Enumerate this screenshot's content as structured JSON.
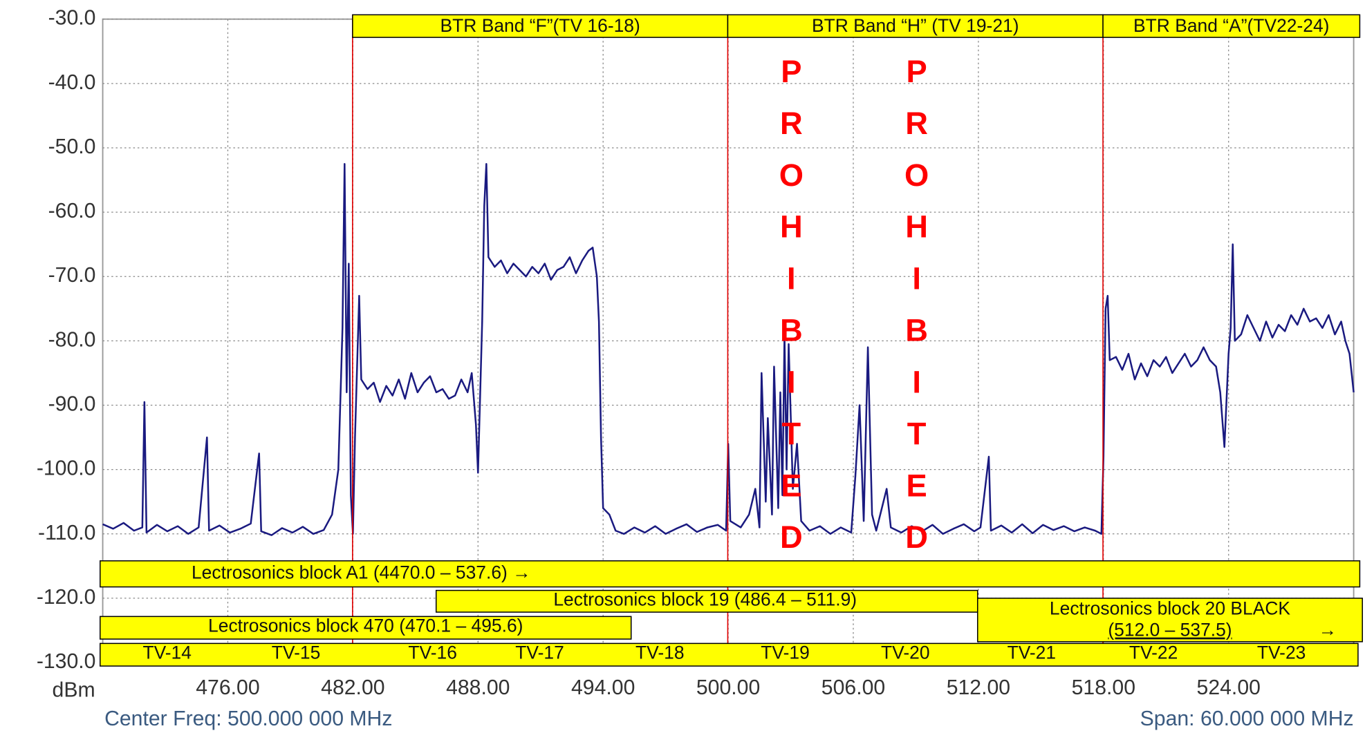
{
  "chart_data": {
    "type": "line",
    "color": "#1a1a80",
    "grid": true,
    "ylabel": "dBm",
    "footer_left": "Center Freq: 500.000 000 MHz",
    "footer_right": "Span: 60.000 000 MHz",
    "xlim": [
      470,
      530
    ],
    "xticks": [
      {
        "value": 476,
        "label": "476.00"
      },
      {
        "value": 482,
        "label": "482.00"
      },
      {
        "value": 488,
        "label": "488.00"
      },
      {
        "value": 494,
        "label": "494.00"
      },
      {
        "value": 500,
        "label": "500.00"
      },
      {
        "value": 506,
        "label": "506.00"
      },
      {
        "value": 512,
        "label": "512.00"
      },
      {
        "value": 518,
        "label": "518.00"
      },
      {
        "value": 524,
        "label": "524.00"
      }
    ],
    "ylim": [
      -130,
      -30
    ],
    "yticks": [
      {
        "value": -30,
        "label": "-30.0"
      },
      {
        "value": -40,
        "label": "-40.0"
      },
      {
        "value": -50,
        "label": "-50.0"
      },
      {
        "value": -60,
        "label": "-60.0"
      },
      {
        "value": -70,
        "label": "-70.0"
      },
      {
        "value": -80,
        "label": "-80.0"
      },
      {
        "value": -90,
        "label": "-90.0"
      },
      {
        "value": -100,
        "label": "-100.0"
      },
      {
        "value": -110,
        "label": "-110.0"
      },
      {
        "value": -120,
        "label": "-120.0"
      },
      {
        "value": -130,
        "label": "-130.0"
      }
    ],
    "bands": [
      "BTR Band “F”(TV 16-18)",
      "BTR Band “H” (TV 19-21)",
      "BTR Band “A”(TV22-24)"
    ],
    "prohibited": [
      "PROHIBITED",
      "PROHIBITED"
    ],
    "blocks": [
      "Lectrosonics block A1 (4470.0 – 537.6) →",
      "Lectrosonics block 19 (486.4 – 511.9)",
      "Lectrosonics block 470 (470.1 – 495.6)",
      "Lectrosonics block 20 BLACK",
      "(512.0 – 537.5)",
      "→"
    ],
    "channels": [
      "TV-14",
      "TV-15",
      "TV-16",
      "TV-17",
      "TV-18",
      "TV-19",
      "TV-20",
      "TV-21",
      "TV-22",
      "TV-23"
    ],
    "x": [
      470.0,
      470.5,
      471.0,
      471.5,
      471.9,
      472.0,
      472.1,
      472.6,
      473.1,
      473.6,
      474.1,
      474.6,
      475.0,
      475.1,
      475.6,
      476.1,
      476.6,
      477.1,
      477.5,
      477.6,
      478.1,
      478.6,
      479.1,
      479.6,
      480.1,
      480.6,
      481.0,
      481.3,
      481.5,
      481.6,
      481.7,
      481.8,
      481.9,
      482.0,
      482.1,
      482.3,
      482.4,
      482.7,
      483.0,
      483.3,
      483.6,
      483.9,
      484.2,
      484.5,
      484.8,
      485.1,
      485.4,
      485.7,
      486.0,
      486.3,
      486.6,
      486.9,
      487.2,
      487.5,
      487.7,
      487.9,
      488.0,
      488.2,
      488.3,
      488.4,
      488.5,
      488.8,
      489.1,
      489.4,
      489.7,
      490.0,
      490.3,
      490.6,
      490.9,
      491.2,
      491.5,
      491.8,
      492.1,
      492.4,
      492.7,
      493.0,
      493.3,
      493.5,
      493.7,
      493.8,
      493.9,
      494.0,
      494.3,
      494.6,
      495.0,
      495.5,
      496.0,
      496.5,
      497.0,
      497.5,
      498.0,
      498.5,
      499.0,
      499.5,
      499.9,
      500.0,
      500.1,
      500.6,
      501.0,
      501.3,
      501.5,
      501.6,
      501.8,
      501.9,
      502.1,
      502.2,
      502.4,
      502.5,
      502.6,
      502.7,
      502.8,
      502.9,
      503.1,
      503.3,
      503.5,
      503.9,
      504.4,
      504.9,
      505.4,
      505.9,
      506.1,
      506.3,
      506.5,
      506.7,
      506.9,
      507.1,
      507.6,
      507.8,
      508.3,
      508.8,
      509.3,
      509.8,
      510.3,
      510.8,
      511.3,
      511.8,
      512.1,
      512.5,
      512.6,
      513.1,
      513.6,
      514.1,
      514.6,
      515.1,
      515.6,
      516.1,
      516.6,
      517.1,
      517.6,
      517.9,
      518.0,
      518.1,
      518.2,
      518.3,
      518.6,
      518.9,
      519.2,
      519.5,
      519.8,
      520.1,
      520.4,
      520.7,
      521.0,
      521.3,
      521.6,
      521.9,
      522.2,
      522.5,
      522.8,
      523.1,
      523.4,
      523.6,
      523.8,
      524.0,
      524.1,
      524.2,
      524.3,
      524.6,
      524.9,
      525.2,
      525.5,
      525.8,
      526.1,
      526.4,
      526.7,
      527.0,
      527.3,
      527.6,
      527.9,
      528.2,
      528.5,
      528.8,
      529.1,
      529.4,
      529.6,
      529.8,
      530.0
    ],
    "values": [
      -108.5,
      -109.2,
      -108.3,
      -109.5,
      -109.0,
      -89.5,
      -109.8,
      -108.6,
      -109.6,
      -108.8,
      -110.0,
      -109.0,
      -95.0,
      -109.5,
      -108.7,
      -109.8,
      -109.2,
      -108.4,
      -97.5,
      -109.6,
      -110.2,
      -109.1,
      -109.8,
      -108.9,
      -110.0,
      -109.4,
      -107.0,
      -100.0,
      -78.0,
      -52.5,
      -88.0,
      -68.0,
      -104.0,
      -110.0,
      -95.0,
      -73.0,
      -86.0,
      -87.5,
      -86.5,
      -89.5,
      -87.0,
      -88.5,
      -86.0,
      -89.0,
      -85.0,
      -88.0,
      -86.5,
      -85.5,
      -88.0,
      -87.5,
      -89.0,
      -88.5,
      -86.0,
      -88.0,
      -85.0,
      -93.0,
      -100.5,
      -77.0,
      -59.0,
      -52.5,
      -67.0,
      -68.5,
      -67.5,
      -69.5,
      -68.0,
      -69.0,
      -70.0,
      -68.5,
      -69.5,
      -68.0,
      -70.5,
      -69.0,
      -68.5,
      -67.0,
      -69.5,
      -67.5,
      -66.0,
      -65.5,
      -70.0,
      -77.0,
      -95.0,
      -106.0,
      -107.0,
      -109.5,
      -110.0,
      -109.0,
      -109.8,
      -108.8,
      -110.0,
      -109.2,
      -108.5,
      -109.7,
      -109.0,
      -108.6,
      -109.5,
      -96.0,
      -108.0,
      -109.0,
      -107.0,
      -103.0,
      -109.0,
      -85.0,
      -105.0,
      -92.0,
      -107.0,
      -84.0,
      -106.0,
      -88.0,
      -104.0,
      -79.0,
      -100.0,
      -80.5,
      -103.0,
      -96.0,
      -108.0,
      -109.5,
      -108.8,
      -110.0,
      -109.0,
      -109.8,
      -101.0,
      -90.0,
      -108.0,
      -81.0,
      -107.0,
      -109.5,
      -103.0,
      -109.0,
      -109.8,
      -108.8,
      -109.6,
      -108.6,
      -110.0,
      -109.2,
      -108.5,
      -109.6,
      -109.0,
      -98.0,
      -109.5,
      -108.7,
      -109.8,
      -108.5,
      -109.9,
      -108.6,
      -109.4,
      -108.8,
      -109.6,
      -109.0,
      -109.5,
      -110.0,
      -98.0,
      -75.0,
      -73.0,
      -83.0,
      -82.5,
      -84.5,
      -82.0,
      -86.0,
      -83.5,
      -85.5,
      -83.0,
      -84.0,
      -82.5,
      -85.0,
      -83.5,
      -82.0,
      -84.0,
      -83.0,
      -81.0,
      -83.0,
      -84.0,
      -88.0,
      -96.5,
      -82.0,
      -78.0,
      -65.0,
      -80.0,
      -79.0,
      -76.0,
      -78.0,
      -80.0,
      -77.0,
      -79.5,
      -77.5,
      -78.5,
      -76.0,
      -77.5,
      -75.0,
      -77.0,
      -76.5,
      -78.0,
      -76.0,
      -79.0,
      -77.0,
      -80.0,
      -82.0,
      -88.0
    ]
  }
}
